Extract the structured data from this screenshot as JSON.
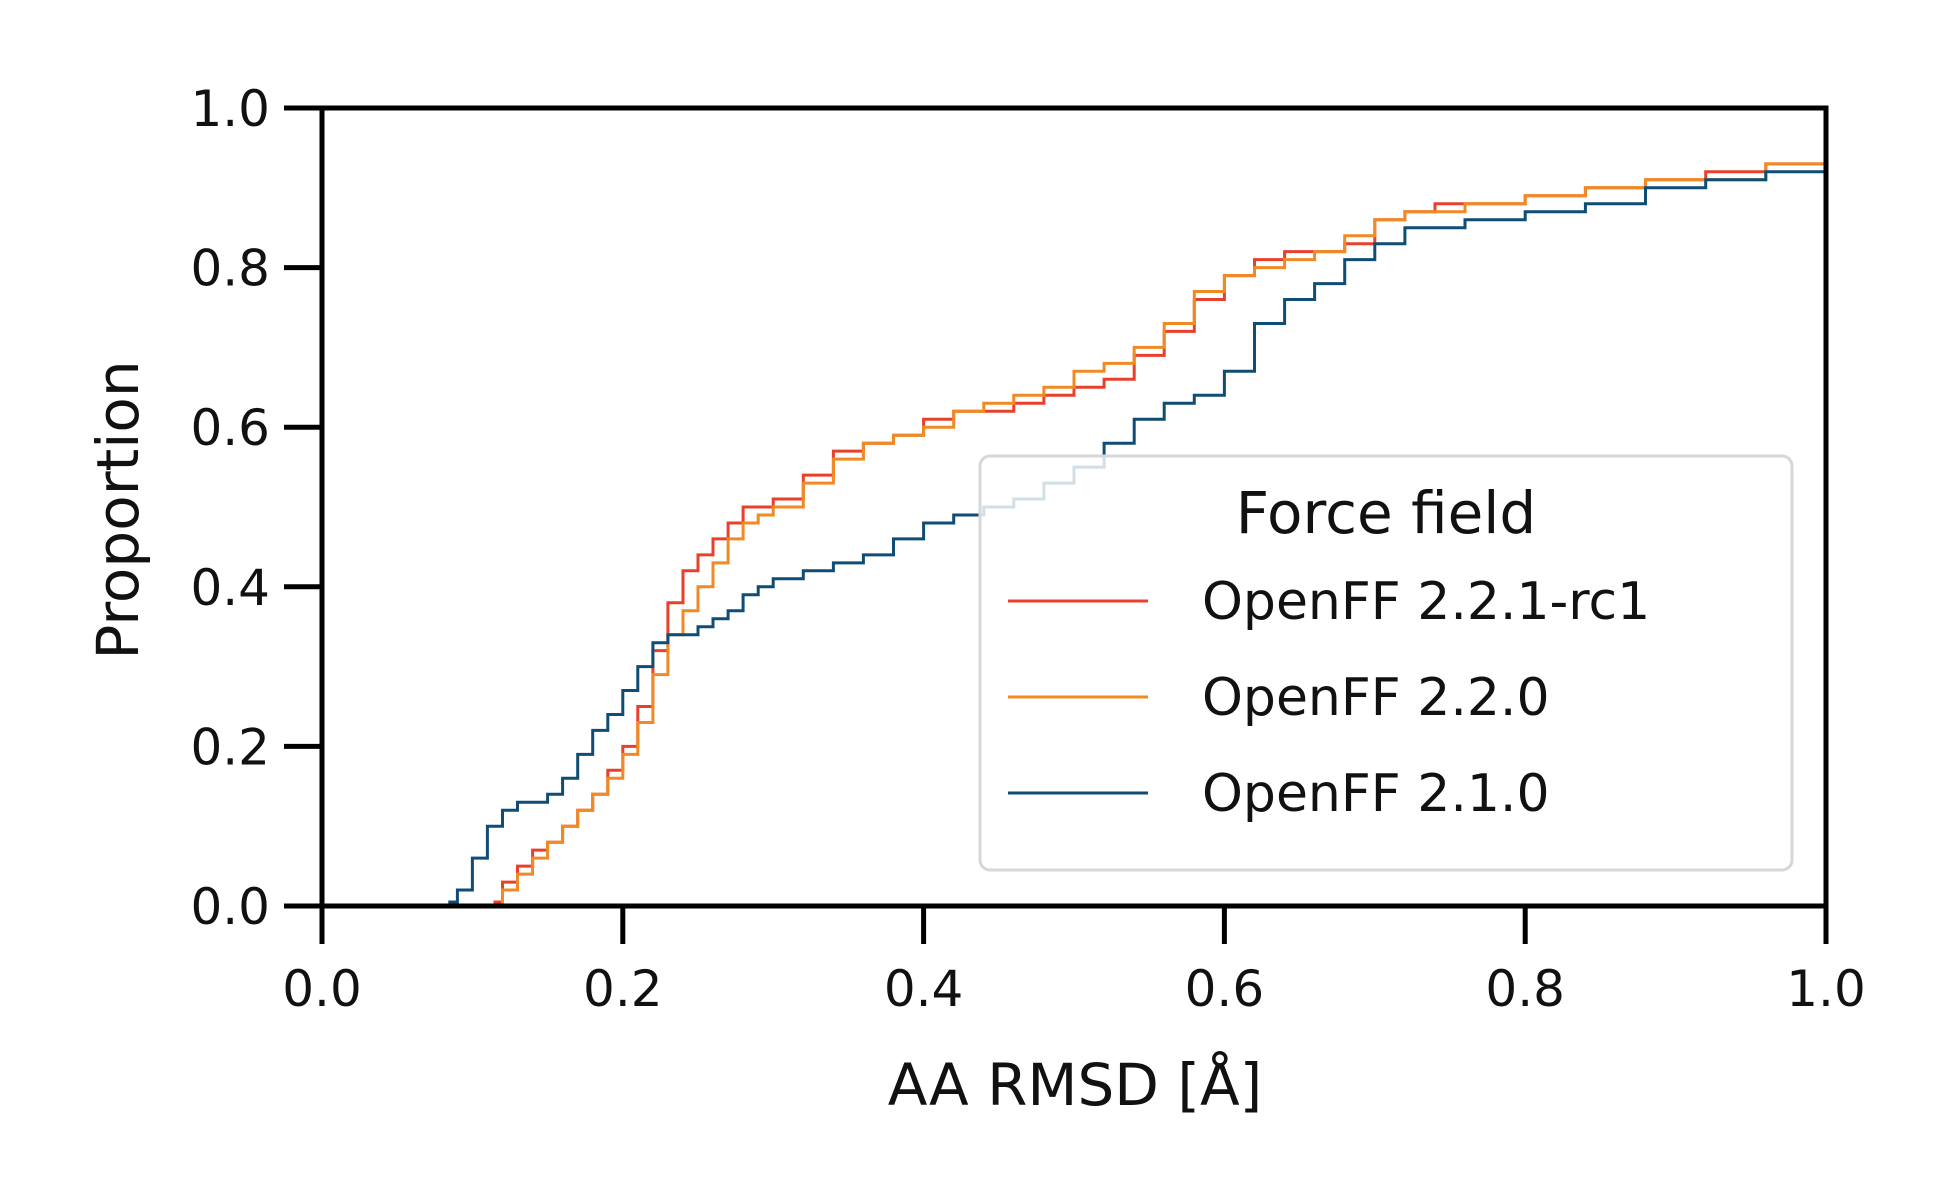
{
  "chart_data": {
    "type": "line",
    "title": "",
    "xlabel": "AA RMSD [Å]",
    "ylabel": "Proportion",
    "xlim": [
      0.0,
      1.0
    ],
    "ylim": [
      0.0,
      1.0
    ],
    "xticks": [
      "0.0",
      "0.2",
      "0.4",
      "0.6",
      "0.8",
      "1.0"
    ],
    "yticks": [
      "0.0",
      "0.2",
      "0.4",
      "0.6",
      "0.8",
      "1.0"
    ],
    "grid": false,
    "legend": {
      "title": "Force field",
      "placement": "lower-right"
    },
    "series": [
      {
        "name": "OpenFF 2.2.1-rc1",
        "color": "#e8402b",
        "x": [
          0.09,
          0.115,
          0.12,
          0.13,
          0.14,
          0.15,
          0.16,
          0.17,
          0.18,
          0.19,
          0.2,
          0.21,
          0.22,
          0.23,
          0.24,
          0.25,
          0.26,
          0.27,
          0.28,
          0.29,
          0.3,
          0.32,
          0.34,
          0.36,
          0.38,
          0.4,
          0.42,
          0.44,
          0.46,
          0.48,
          0.5,
          0.52,
          0.54,
          0.56,
          0.58,
          0.6,
          0.62,
          0.64,
          0.66,
          0.68,
          0.7,
          0.72,
          0.74,
          0.76,
          0.8,
          0.84,
          0.88,
          0.92,
          0.96,
          1.0
        ],
        "y": [
          0.0,
          0.005,
          0.03,
          0.05,
          0.07,
          0.08,
          0.1,
          0.12,
          0.14,
          0.17,
          0.2,
          0.25,
          0.32,
          0.38,
          0.42,
          0.44,
          0.46,
          0.48,
          0.5,
          0.5,
          0.51,
          0.54,
          0.57,
          0.58,
          0.59,
          0.61,
          0.62,
          0.62,
          0.63,
          0.64,
          0.65,
          0.66,
          0.69,
          0.72,
          0.76,
          0.79,
          0.81,
          0.82,
          0.82,
          0.83,
          0.86,
          0.87,
          0.88,
          0.88,
          0.89,
          0.9,
          0.91,
          0.92,
          0.93,
          0.94
        ]
      },
      {
        "name": "OpenFF 2.2.0",
        "color": "#f08a24",
        "x": [
          0.09,
          0.115,
          0.12,
          0.13,
          0.14,
          0.15,
          0.16,
          0.17,
          0.18,
          0.19,
          0.2,
          0.21,
          0.22,
          0.23,
          0.24,
          0.25,
          0.26,
          0.27,
          0.28,
          0.29,
          0.3,
          0.32,
          0.34,
          0.36,
          0.38,
          0.4,
          0.42,
          0.44,
          0.46,
          0.48,
          0.5,
          0.52,
          0.54,
          0.56,
          0.58,
          0.6,
          0.62,
          0.64,
          0.66,
          0.68,
          0.7,
          0.72,
          0.74,
          0.76,
          0.8,
          0.84,
          0.88,
          0.92,
          0.96,
          1.0
        ],
        "y": [
          0.0,
          0.0,
          0.02,
          0.04,
          0.06,
          0.08,
          0.1,
          0.12,
          0.14,
          0.16,
          0.19,
          0.23,
          0.29,
          0.34,
          0.37,
          0.4,
          0.43,
          0.46,
          0.48,
          0.49,
          0.5,
          0.53,
          0.56,
          0.58,
          0.59,
          0.6,
          0.62,
          0.63,
          0.64,
          0.65,
          0.67,
          0.68,
          0.7,
          0.73,
          0.77,
          0.79,
          0.8,
          0.81,
          0.82,
          0.84,
          0.86,
          0.87,
          0.87,
          0.88,
          0.89,
          0.9,
          0.91,
          0.91,
          0.93,
          0.945
        ]
      },
      {
        "name": "OpenFF 2.1.0",
        "color": "#0f4d74",
        "x": [
          0.08,
          0.085,
          0.09,
          0.1,
          0.11,
          0.12,
          0.13,
          0.14,
          0.15,
          0.16,
          0.17,
          0.18,
          0.19,
          0.2,
          0.21,
          0.22,
          0.23,
          0.24,
          0.25,
          0.26,
          0.27,
          0.28,
          0.29,
          0.3,
          0.32,
          0.34,
          0.36,
          0.38,
          0.4,
          0.42,
          0.44,
          0.46,
          0.48,
          0.5,
          0.52,
          0.54,
          0.56,
          0.58,
          0.6,
          0.62,
          0.64,
          0.66,
          0.68,
          0.7,
          0.72,
          0.76,
          0.8,
          0.84,
          0.88,
          0.92,
          0.96,
          1.0
        ],
        "y": [
          0.0,
          0.005,
          0.02,
          0.06,
          0.1,
          0.12,
          0.13,
          0.13,
          0.14,
          0.16,
          0.19,
          0.22,
          0.24,
          0.27,
          0.3,
          0.33,
          0.34,
          0.34,
          0.35,
          0.36,
          0.37,
          0.39,
          0.4,
          0.41,
          0.42,
          0.43,
          0.44,
          0.46,
          0.48,
          0.49,
          0.5,
          0.51,
          0.53,
          0.55,
          0.58,
          0.61,
          0.63,
          0.64,
          0.67,
          0.73,
          0.76,
          0.78,
          0.81,
          0.83,
          0.85,
          0.86,
          0.87,
          0.88,
          0.9,
          0.91,
          0.92,
          0.93
        ]
      }
    ]
  }
}
